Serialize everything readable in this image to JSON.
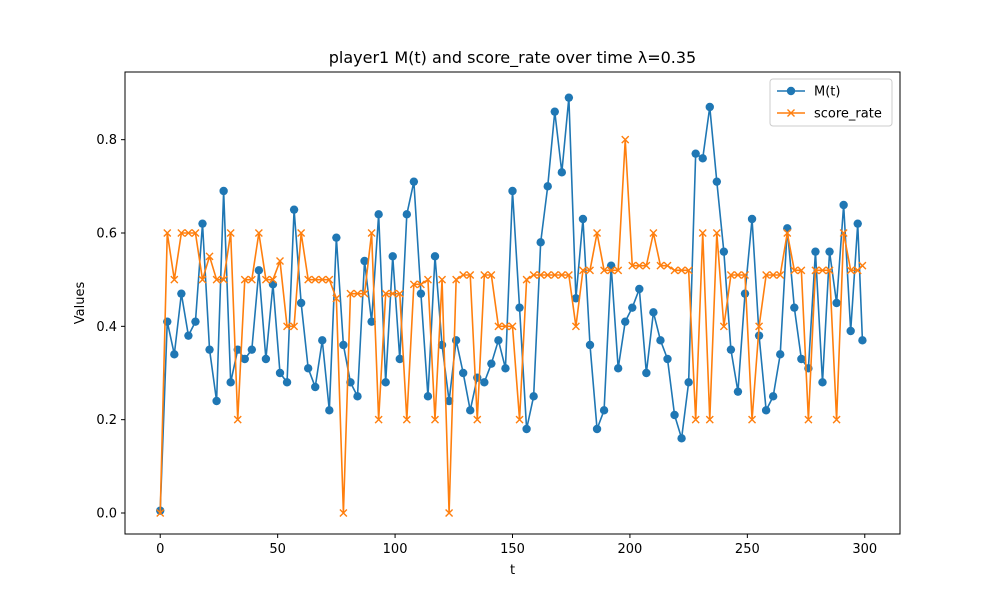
{
  "chart_data": {
    "type": "line",
    "title": "player1 M(t) and score_rate over time λ=0.35",
    "xlabel": "t",
    "ylabel": "Values",
    "xlim": [
      -15,
      315
    ],
    "ylim": [
      -0.045,
      0.945
    ],
    "x_ticks": [
      0,
      50,
      100,
      150,
      200,
      250,
      300
    ],
    "y_ticks": [
      0.0,
      0.2,
      0.4,
      0.6,
      0.8
    ],
    "x_tick_labels": [
      "0",
      "50",
      "100",
      "150",
      "200",
      "250",
      "300"
    ],
    "y_tick_labels": [
      "0.0",
      "0.2",
      "0.4",
      "0.6",
      "0.8"
    ],
    "grid": false,
    "legend_position": "upper right",
    "x": [
      0,
      3,
      6,
      9,
      12,
      15,
      18,
      21,
      24,
      27,
      30,
      33,
      36,
      39,
      42,
      45,
      48,
      51,
      54,
      57,
      60,
      63,
      66,
      69,
      72,
      75,
      78,
      81,
      84,
      87,
      90,
      93,
      96,
      99,
      102,
      105,
      108,
      111,
      114,
      117,
      120,
      123,
      126,
      129,
      132,
      135,
      138,
      141,
      144,
      147,
      150,
      153,
      156,
      159,
      162,
      165,
      168,
      171,
      174,
      177,
      180,
      183,
      186,
      189,
      192,
      195,
      198,
      201,
      204,
      207,
      210,
      213,
      216,
      219,
      222,
      225,
      228,
      231,
      234,
      237,
      240,
      243,
      246,
      249,
      252,
      255,
      258,
      261,
      264,
      267,
      270,
      273,
      276,
      279,
      282,
      285,
      288,
      291,
      294,
      297,
      299
    ],
    "series": [
      {
        "name": "M(t)",
        "color": "#1f77b4",
        "marker": "circle",
        "values": [
          0.005,
          0.41,
          0.34,
          0.47,
          0.38,
          0.41,
          0.62,
          0.35,
          0.24,
          0.69,
          0.28,
          0.35,
          0.33,
          0.35,
          0.52,
          0.33,
          0.49,
          0.3,
          0.28,
          0.65,
          0.45,
          0.31,
          0.27,
          0.37,
          0.22,
          0.59,
          0.36,
          0.28,
          0.25,
          0.54,
          0.41,
          0.64,
          0.28,
          0.55,
          0.33,
          0.64,
          0.71,
          0.47,
          0.25,
          0.55,
          0.36,
          0.24,
          0.37,
          0.3,
          0.22,
          0.29,
          0.28,
          0.32,
          0.37,
          0.31,
          0.69,
          0.44,
          0.18,
          0.25,
          0.58,
          0.7,
          0.86,
          0.73,
          0.89,
          0.46,
          0.63,
          0.36,
          0.18,
          0.22,
          0.53,
          0.31,
          0.41,
          0.44,
          0.48,
          0.3,
          0.43,
          0.37,
          0.33,
          0.21,
          0.16,
          0.28,
          0.77,
          0.76,
          0.87,
          0.71,
          0.56,
          0.35,
          0.26,
          0.47,
          0.63,
          0.38,
          0.22,
          0.25,
          0.34,
          0.61,
          0.44,
          0.33,
          0.31,
          0.56,
          0.28,
          0.56,
          0.45,
          0.66,
          0.39,
          0.62,
          0.37
        ]
      },
      {
        "name": "score_rate",
        "color": "#ff7f0e",
        "marker": "x",
        "values": [
          0.0,
          0.6,
          0.5,
          0.6,
          0.6,
          0.6,
          0.5,
          0.55,
          0.5,
          0.5,
          0.6,
          0.2,
          0.5,
          0.5,
          0.6,
          0.5,
          0.5,
          0.54,
          0.4,
          0.4,
          0.6,
          0.5,
          0.5,
          0.5,
          0.5,
          0.46,
          0.0,
          0.47,
          0.47,
          0.47,
          0.6,
          0.2,
          0.47,
          0.47,
          0.47,
          0.2,
          0.49,
          0.49,
          0.5,
          0.2,
          0.5,
          0.0,
          0.5,
          0.51,
          0.51,
          0.2,
          0.51,
          0.51,
          0.4,
          0.4,
          0.4,
          0.2,
          0.5,
          0.51,
          0.51,
          0.51,
          0.51,
          0.51,
          0.51,
          0.4,
          0.52,
          0.52,
          0.6,
          0.52,
          0.52,
          0.52,
          0.8,
          0.53,
          0.53,
          0.53,
          0.6,
          0.53,
          0.53,
          0.52,
          0.52,
          0.52,
          0.2,
          0.6,
          0.2,
          0.6,
          0.4,
          0.51,
          0.51,
          0.51,
          0.2,
          0.4,
          0.51,
          0.51,
          0.51,
          0.6,
          0.52,
          0.52,
          0.2,
          0.52,
          0.52,
          0.52,
          0.2,
          0.6,
          0.52,
          0.52,
          0.53
        ]
      }
    ]
  }
}
